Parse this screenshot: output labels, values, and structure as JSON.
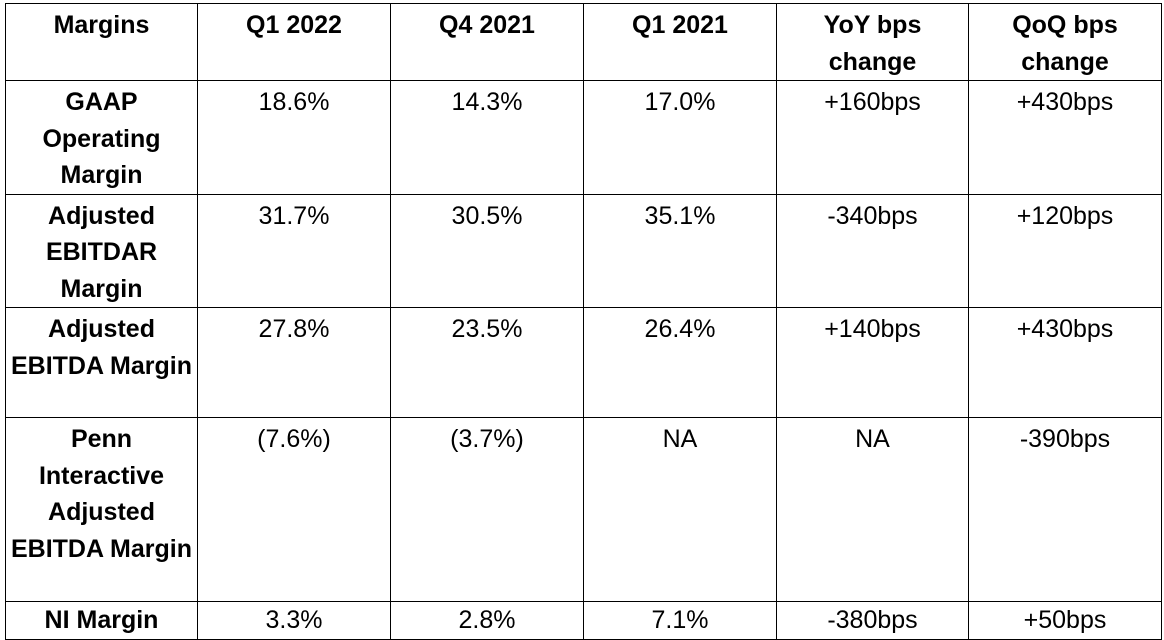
{
  "table": {
    "headers": [
      "Margins",
      "Q1 2022",
      "Q4 2021",
      "Q1 2021",
      "YoY bps change",
      "QoQ bps change"
    ],
    "rows": [
      {
        "label": "GAAP Operating Margin",
        "values": [
          "18.6%",
          "14.3%",
          "17.0%",
          "+160bps",
          "+430bps"
        ]
      },
      {
        "label": "Adjusted EBITDAR Margin",
        "values": [
          "31.7%",
          "30.5%",
          "35.1%",
          "-340bps",
          "+120bps"
        ]
      },
      {
        "label": "Adjusted EBITDA Margin",
        "values": [
          "27.8%",
          "23.5%",
          "26.4%",
          "+140bps",
          "+430bps"
        ]
      },
      {
        "label": "Penn Interactive Adjusted EBITDA Margin",
        "values": [
          "(7.6%)",
          "(3.7%)",
          "NA",
          "NA",
          "-390bps"
        ]
      },
      {
        "label": "NI Margin",
        "values": [
          "3.3%",
          "2.8%",
          "7.1%",
          "-380bps",
          "+50bps"
        ]
      }
    ]
  }
}
